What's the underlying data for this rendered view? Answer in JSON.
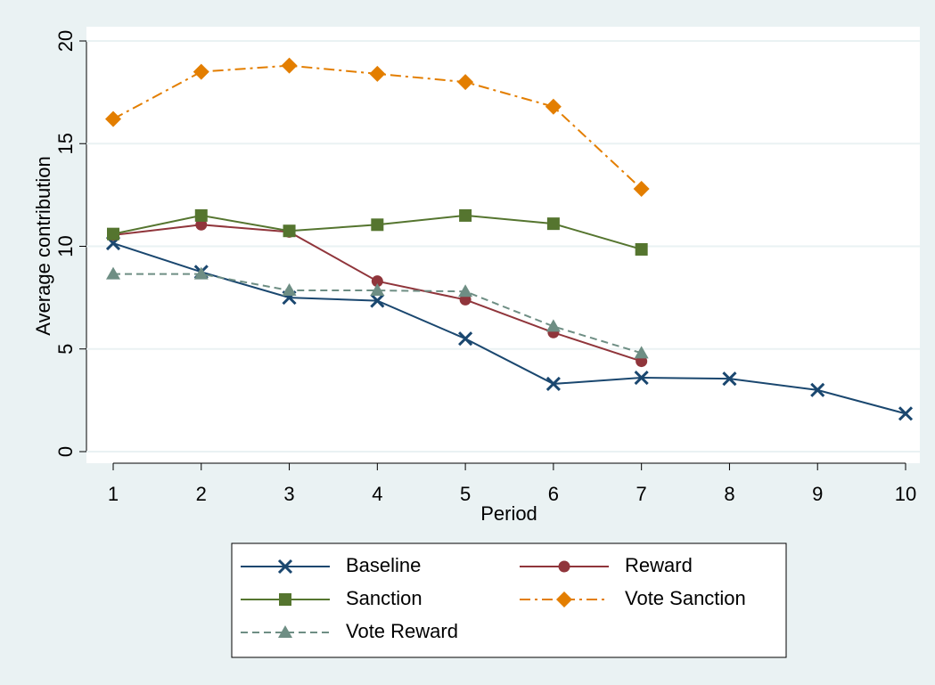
{
  "chart_data": {
    "type": "line",
    "xlabel": "Period",
    "ylabel": "Average contribution",
    "x": [
      1,
      2,
      3,
      4,
      5,
      6,
      7,
      8,
      9,
      10
    ],
    "xlim": [
      1,
      10
    ],
    "xticks": [
      1,
      2,
      3,
      4,
      5,
      6,
      7,
      8,
      9,
      10
    ],
    "ylim": [
      0,
      20
    ],
    "yticks": [
      0,
      5,
      10,
      15,
      20
    ],
    "grid": true,
    "series": [
      {
        "name": "Baseline",
        "color": "#1a476f",
        "marker": "x",
        "dash": "solid",
        "values": [
          10.15,
          8.75,
          7.5,
          7.35,
          5.5,
          3.3,
          3.6,
          3.55,
          3.0,
          1.85
        ]
      },
      {
        "name": "Reward",
        "color": "#90353b",
        "marker": "circle",
        "dash": "solid",
        "values": [
          10.55,
          11.05,
          10.7,
          8.3,
          7.4,
          5.8,
          4.4,
          null,
          null,
          null
        ]
      },
      {
        "name": "Sanction",
        "color": "#55752f",
        "marker": "square",
        "dash": "solid",
        "values": [
          10.6,
          11.5,
          10.75,
          11.05,
          11.5,
          11.1,
          9.85,
          null,
          null,
          null
        ]
      },
      {
        "name": "Vote Sanction",
        "color": "#e37e00",
        "marker": "diamond",
        "dash": "dashdot",
        "values": [
          16.2,
          18.5,
          18.8,
          18.4,
          18.0,
          16.8,
          12.8,
          null,
          null,
          null
        ]
      },
      {
        "name": "Vote Reward",
        "color": "#6e8e84",
        "marker": "triangle",
        "dash": "dash",
        "values": [
          8.65,
          8.65,
          7.85,
          7.85,
          7.8,
          6.1,
          4.8,
          null,
          null,
          null
        ]
      }
    ]
  }
}
